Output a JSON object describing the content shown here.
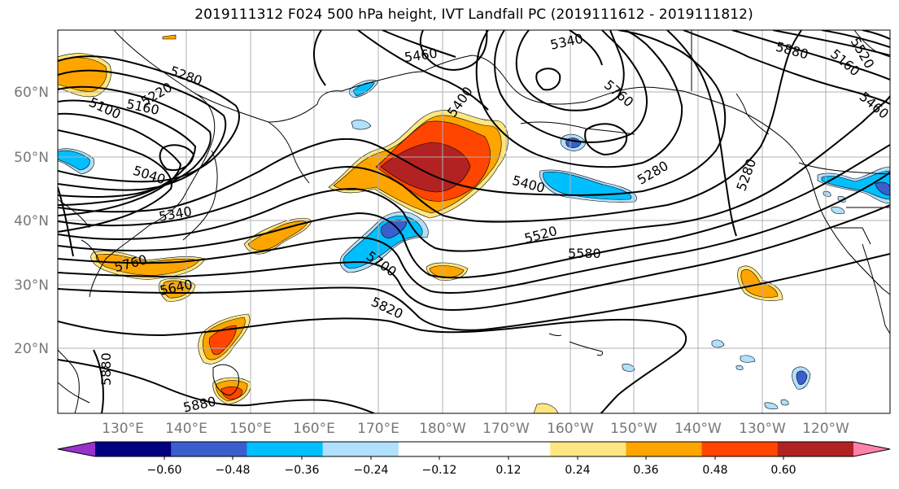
{
  "title": "2019111312 F024 500 hPa height, IVT Landfall PC (2019111612 - 2019111812)",
  "map": {
    "lat_labels": [
      "60°N",
      "50°N",
      "40°N",
      "30°N",
      "20°N"
    ],
    "lon_labels": [
      "130°E",
      "140°E",
      "150°E",
      "160°E",
      "170°E",
      "180°W",
      "170°W",
      "160°W",
      "150°W",
      "140°W",
      "130°W",
      "120°W"
    ],
    "contour_labels": [
      "5460",
      "5340",
      "5280",
      "5220",
      "5160",
      "5100",
      "5400",
      "5760",
      "5280",
      "5040",
      "5340",
      "5400",
      "5280",
      "5520",
      "5580",
      "5700",
      "5760",
      "5640",
      "5820",
      "5880",
      "5880",
      "5880",
      "5160",
      "5520",
      "5460"
    ],
    "shading_colors": {
      "pos_low": "#fee781",
      "pos_mid": "#ffa500",
      "pos_high": "#ff4500",
      "pos_max": "#b22222",
      "neg_low": "#b0e0fe",
      "neg_mid": "#00bfff",
      "neg_high": "#3a5fcd"
    }
  },
  "colorbar": {
    "colors": [
      "#9932cc",
      "#000080",
      "#3a5fcd",
      "#00bfff",
      "#b0e0fe",
      "#ffffff",
      "#ffffff",
      "#fee781",
      "#ffa500",
      "#ff4500",
      "#b22222",
      "#ff82ab"
    ],
    "tick_labels": [
      "−0.60",
      "−0.48",
      "−0.36",
      "−0.24",
      "−0.12",
      "0.12",
      "0.24",
      "0.36",
      "0.48",
      "0.60"
    ]
  }
}
